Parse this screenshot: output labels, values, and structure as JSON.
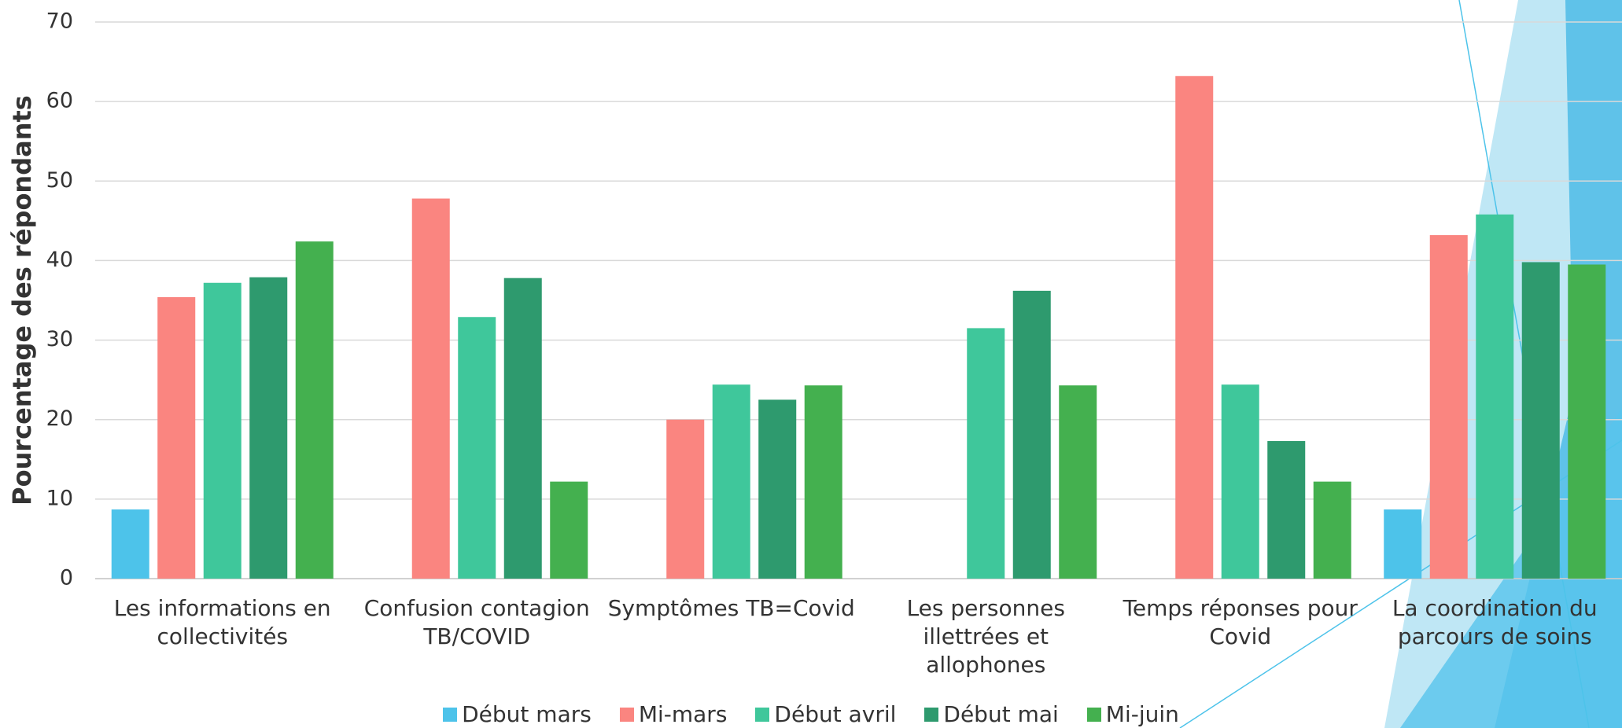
{
  "chart_data": {
    "type": "bar",
    "y_label": "Pourcentage des répondants",
    "categories": [
      "Les informations en collectivités",
      "Confusion contagion TB/COVID",
      "Symptômes TB=Covid",
      "Les personnes illettrées et allophones",
      "Temps réponses pour Covid",
      "La coordination du parcours de soins"
    ],
    "series": [
      {
        "name": "Début mars",
        "color": "#4dc3ea",
        "values": [
          8.7,
          0,
          0,
          0,
          0,
          8.7
        ]
      },
      {
        "name": "Mi-mars",
        "color": "#fa8580",
        "values": [
          35.4,
          47.8,
          20,
          0,
          63.2,
          43.2
        ]
      },
      {
        "name": "Début avril",
        "color": "#3fc79b",
        "values": [
          37.2,
          32.9,
          24.4,
          31.5,
          24.4,
          45.8
        ]
      },
      {
        "name": "Début mai",
        "color": "#2e9a6e",
        "values": [
          37.9,
          37.8,
          22.5,
          36.2,
          17.3,
          39.8
        ]
      },
      {
        "name": "Mi-juin",
        "color": "#44b04f",
        "values": [
          42.4,
          12.2,
          24.3,
          24.3,
          12.2,
          39.5
        ]
      }
    ],
    "ylim": [
      0,
      70
    ],
    "yticks": [
      0,
      10,
      20,
      30,
      40,
      50,
      60,
      70
    ],
    "grid": true
  }
}
